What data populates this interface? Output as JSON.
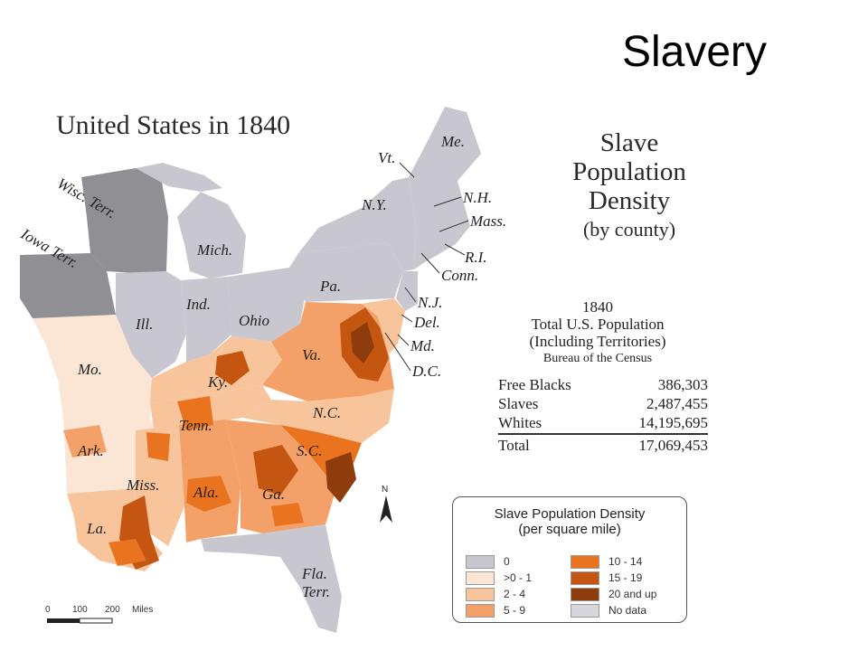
{
  "slide_title": "Slavery",
  "map_title": "United States in 1840",
  "density_title": {
    "line1": "Slave",
    "line2": "Population",
    "line3": "Density",
    "line4": "(by county)"
  },
  "stats": {
    "year": "1840",
    "line1": "Total U.S. Population",
    "line2": "(Including Territories)",
    "source": "Bureau of the Census",
    "rows": [
      {
        "label": "Free Blacks",
        "value": "386,303"
      },
      {
        "label": "Slaves",
        "value": "2,487,455"
      },
      {
        "label": "Whites",
        "value": "14,195,695"
      }
    ],
    "total_label": "Total",
    "total_value": "17,069,453"
  },
  "legend": {
    "heading1": "Slave Population Density",
    "heading2": "(per square mile)",
    "items_left": [
      {
        "label": "0",
        "color": "#c8c7d0"
      },
      {
        "label": ">0 - 1",
        "color": "#fbe6d6"
      },
      {
        "label": "2 - 4",
        "color": "#f8c49c"
      },
      {
        "label": "5 - 9",
        "color": "#f3a168"
      }
    ],
    "items_right": [
      {
        "label": "10 - 14",
        "color": "#ea7320"
      },
      {
        "label": "15 - 19",
        "color": "#c55612"
      },
      {
        "label": "20 and up",
        "color": "#8e3c0c"
      },
      {
        "label": "No data",
        "color": "#d7d6dc"
      }
    ]
  },
  "state_labels": {
    "wisc": "Wisc. Terr.",
    "iowa": "Iowa Terr.",
    "mich": "Mich.",
    "ill": "Ill.",
    "ind": "Ind.",
    "ohio": "Ohio",
    "pa": "Pa.",
    "ny": "N.Y.",
    "vt": "Vt.",
    "me": "Me.",
    "nh": "N.H.",
    "mass": "Mass.",
    "ri": "R.I.",
    "conn": "Conn.",
    "nj": "N.J.",
    "del": "Del.",
    "md": "Md.",
    "dc": "D.C.",
    "va": "Va.",
    "ky": "Ky.",
    "mo": "Mo.",
    "tenn": "Tenn.",
    "nc": "N.C.",
    "sc": "S.C.",
    "ark": "Ark.",
    "miss": "Miss.",
    "ala": "Ala.",
    "ga": "Ga.",
    "la": "La.",
    "fla": "Fla.",
    "fla2": "Terr."
  },
  "compass_label": "N",
  "scale": {
    "ticks": [
      "0",
      "100",
      "200"
    ],
    "unit": "Miles"
  }
}
